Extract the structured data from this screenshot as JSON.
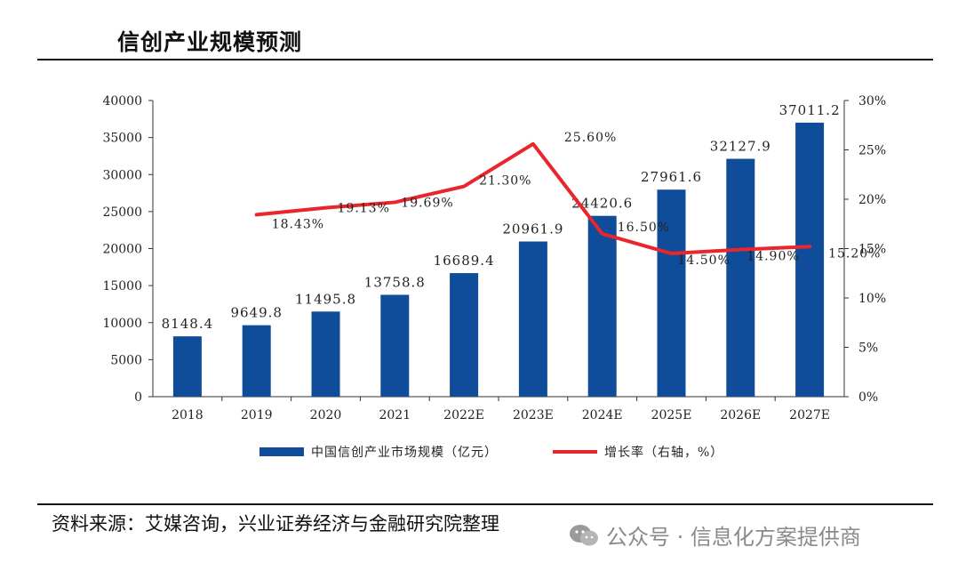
{
  "title": "信创产业规模预测",
  "source": "资料来源：艾媒咨询，兴业证券经济与金融研究院整理",
  "watermark": "公众号 · 信息化方案提供商",
  "colors": {
    "bar": "#0f4c9a",
    "line": "#e8262b",
    "text": "#222222",
    "axis": "#333333"
  },
  "chart_data": {
    "type": "bar+line",
    "categories": [
      "2018",
      "2019",
      "2020",
      "2021",
      "2022E",
      "2023E",
      "2024E",
      "2025E",
      "2026E",
      "2027E"
    ],
    "series": [
      {
        "name": "中国信创产业市场规模（亿元）",
        "type": "bar",
        "axis": "left",
        "values": [
          8148.4,
          9649.8,
          11495.8,
          13758.8,
          16689.4,
          20961.9,
          24420.6,
          27961.6,
          32127.9,
          37011.2
        ],
        "labels": [
          "8148.4",
          "9649.8",
          "11495.8",
          "13758.8",
          "16689.4",
          "20961.9",
          "24420.6",
          "27961.6",
          "32127.9",
          "37011.2"
        ]
      },
      {
        "name": "增长率（右轴，%）",
        "type": "line",
        "axis": "right",
        "values": [
          null,
          18.43,
          19.13,
          19.69,
          21.3,
          25.6,
          16.5,
          14.5,
          14.9,
          15.2
        ],
        "labels": [
          "",
          "18.43%",
          "19.13%",
          "19.69%",
          "21.30%",
          "25.60%",
          "16.50%",
          "14.50%",
          "14.90%",
          "15.20%"
        ]
      }
    ],
    "y_left": {
      "min": 0,
      "max": 40000,
      "ticks": [
        "0",
        "5000",
        "10000",
        "15000",
        "20000",
        "25000",
        "30000",
        "35000",
        "40000"
      ]
    },
    "y_right": {
      "min": 0,
      "max": 30,
      "ticks": [
        "0%",
        "5%",
        "10%",
        "15%",
        "20%",
        "25%",
        "30%"
      ]
    },
    "legend_position": "bottom-center"
  }
}
